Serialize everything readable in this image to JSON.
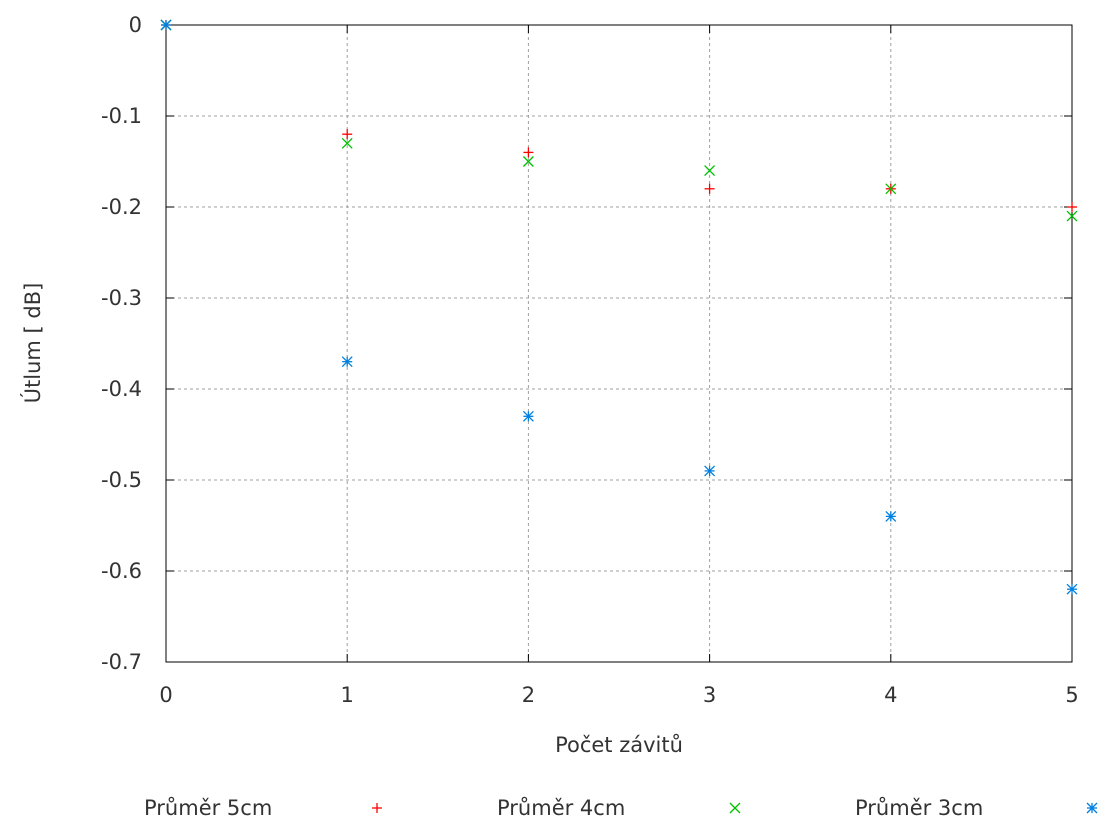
{
  "chart_data": {
    "type": "scatter",
    "title": "",
    "xlabel": "Počet závitů",
    "ylabel": "Útlum [ dB]",
    "xlim": [
      0,
      5
    ],
    "ylim": [
      -0.7,
      0
    ],
    "x_ticks": [
      0,
      1,
      2,
      3,
      4,
      5
    ],
    "x_tick_labels": [
      "0",
      "1",
      "2",
      "3",
      "4",
      "5"
    ],
    "y_ticks": [
      0,
      -0.1,
      -0.2,
      -0.3,
      -0.4,
      -0.5,
      -0.6,
      -0.7
    ],
    "y_tick_labels": [
      "0",
      "-0.1",
      "-0.2",
      "-0.3",
      "-0.4",
      "-0.5",
      "-0.6",
      "-0.7"
    ],
    "grid": true,
    "legend_position": "bottom",
    "series": [
      {
        "name": "Průměr 5cm",
        "marker": "plus",
        "color": "#ff0000",
        "x": [
          0,
          1,
          2,
          3,
          4,
          5
        ],
        "y": [
          0,
          -0.12,
          -0.14,
          -0.18,
          -0.18,
          -0.2
        ]
      },
      {
        "name": "Průměr 4cm",
        "marker": "cross",
        "color": "#00c000",
        "x": [
          0,
          1,
          2,
          3,
          4,
          5
        ],
        "y": [
          0,
          -0.13,
          -0.15,
          -0.16,
          -0.18,
          -0.21
        ]
      },
      {
        "name": "Průměr 3cm",
        "marker": "star",
        "color": "#0080e0",
        "x": [
          0,
          1,
          2,
          3,
          4,
          5
        ],
        "y": [
          0,
          -0.37,
          -0.43,
          -0.49,
          -0.54,
          -0.62
        ]
      }
    ]
  }
}
